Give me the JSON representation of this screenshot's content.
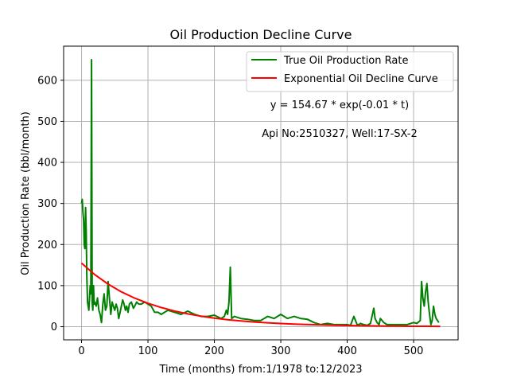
{
  "chart_data": {
    "type": "line",
    "title": "Oil Production Decline Curve",
    "xlabel": "Time (months) from:1/1978 to:12/2023",
    "ylabel": "Oil Production Rate (bbl/month)",
    "xlim": [
      -27,
      567
    ],
    "ylim": [
      -32,
      683
    ],
    "xticks": [
      0,
      100,
      200,
      300,
      400,
      500
    ],
    "yticks": [
      0,
      100,
      200,
      300,
      400,
      500,
      600
    ],
    "grid": true,
    "legend_position": "top-right",
    "annotations": [
      "y = 154.67 * exp(-0.01 * t)",
      "Api No:2510327, Well:17-SX-2"
    ],
    "series": [
      {
        "name": "True Oil Production Rate",
        "color": "#008000",
        "x": [
          0,
          1,
          2,
          3,
          4,
          5,
          6,
          7,
          8,
          9,
          10,
          11,
          12,
          13,
          14,
          15,
          16,
          17,
          18,
          19,
          20,
          22,
          24,
          26,
          28,
          30,
          32,
          34,
          36,
          38,
          40,
          42,
          44,
          46,
          48,
          50,
          52,
          54,
          56,
          58,
          60,
          62,
          64,
          66,
          68,
          70,
          72,
          75,
          78,
          80,
          83,
          86,
          90,
          95,
          100,
          105,
          110,
          115,
          120,
          130,
          140,
          150,
          160,
          170,
          180,
          190,
          200,
          210,
          215,
          218,
          220,
          222,
          224,
          226,
          230,
          240,
          250,
          260,
          270,
          280,
          290,
          300,
          310,
          320,
          330,
          340,
          350,
          360,
          370,
          380,
          390,
          400,
          405,
          410,
          415,
          418,
          420,
          425,
          430,
          435,
          440,
          442,
          445,
          448,
          450,
          455,
          460,
          470,
          480,
          490,
          500,
          505,
          510,
          512,
          514,
          516,
          518,
          520,
          522,
          524,
          526,
          528,
          530,
          532,
          534,
          536,
          538
        ],
        "y": [
          300,
          310,
          280,
          260,
          200,
          190,
          290,
          230,
          120,
          60,
          50,
          40,
          70,
          100,
          80,
          650,
          60,
          40,
          100,
          55,
          60,
          50,
          70,
          40,
          30,
          10,
          55,
          80,
          40,
          50,
          110,
          70,
          30,
          60,
          50,
          40,
          55,
          45,
          20,
          35,
          50,
          65,
          55,
          40,
          50,
          35,
          55,
          60,
          45,
          50,
          60,
          55,
          55,
          60,
          55,
          50,
          35,
          35,
          30,
          40,
          35,
          30,
          38,
          30,
          25,
          25,
          28,
          20,
          25,
          40,
          30,
          60,
          145,
          20,
          25,
          20,
          18,
          15,
          15,
          25,
          20,
          30,
          20,
          25,
          20,
          18,
          10,
          5,
          8,
          5,
          5,
          5,
          3,
          25,
          5,
          5,
          8,
          5,
          3,
          8,
          45,
          20,
          10,
          5,
          20,
          10,
          5,
          5,
          5,
          5,
          10,
          8,
          15,
          110,
          70,
          50,
          85,
          105,
          60,
          30,
          5,
          15,
          50,
          30,
          20,
          15,
          10
        ]
      },
      {
        "name": "Exponential Oil Decline Curve",
        "color": "#ff0000",
        "x": [
          0,
          20,
          40,
          60,
          80,
          100,
          120,
          140,
          160,
          180,
          200,
          220,
          240,
          260,
          280,
          300,
          320,
          340,
          360,
          380,
          400,
          420,
          440,
          460,
          480,
          500,
          520,
          540
        ],
        "y": [
          154.7,
          126.6,
          103.7,
          84.9,
          69.5,
          56.9,
          46.6,
          38.1,
          31.2,
          25.6,
          20.9,
          17.1,
          14.0,
          11.5,
          9.4,
          7.7,
          6.3,
          5.2,
          4.2,
          3.5,
          2.8,
          2.3,
          1.9,
          1.6,
          1.3,
          1.0,
          0.9,
          0.7
        ]
      }
    ]
  }
}
